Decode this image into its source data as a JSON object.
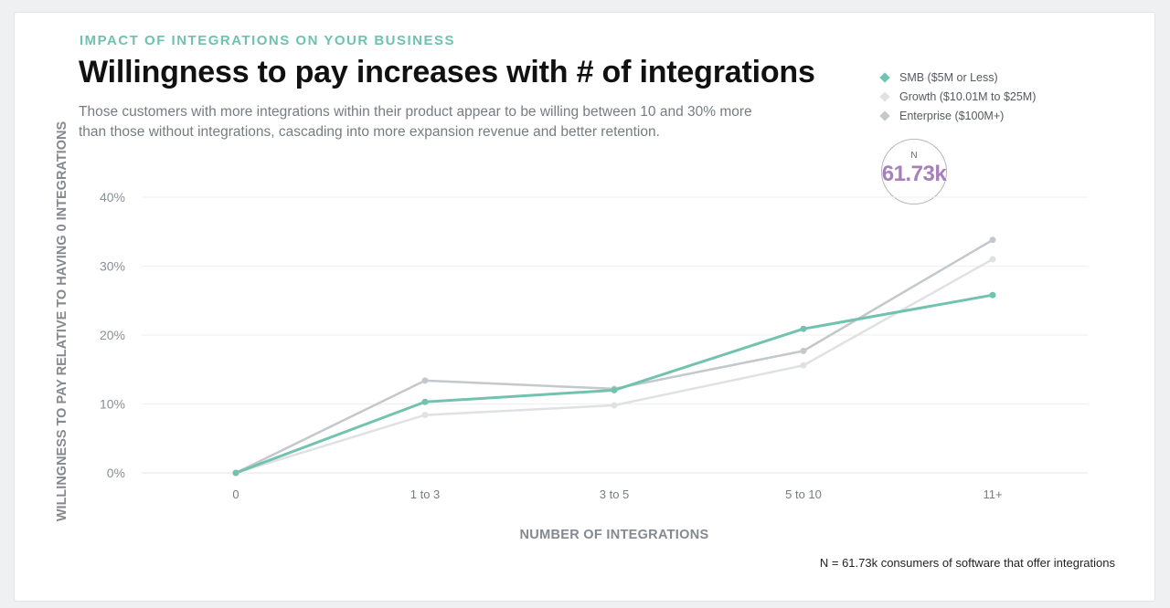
{
  "header": {
    "eyebrow": "IMPACT OF INTEGRATIONS ON YOUR BUSINESS",
    "title": "Willingness to pay increases with # of integrations",
    "subtitle": "Those customers with more integrations within their product appear to be willing between 10 and 30% more than those without integrations, cascading into more expansion revenue and better retention."
  },
  "badge": {
    "label": "N",
    "value": "61.73k"
  },
  "footnote": "N = 61.73k consumers of software that offer integrations",
  "chart_data": {
    "type": "line",
    "categories": [
      "0",
      "1 to 3",
      "3 to 5",
      "5 to 10",
      "11+"
    ],
    "xlabel": "NUMBER OF INTEGRATIONS",
    "ylabel": "WILLINGNESS TO PAY RELATIVE TO HAVING 0 INTEGRATIONS",
    "ylim": [
      0,
      40
    ],
    "yticks": [
      0,
      10,
      20,
      30,
      40
    ],
    "ytick_labels": [
      "0%",
      "10%",
      "20%",
      "30%",
      "40%"
    ],
    "grid": true,
    "legend_position": "top-right",
    "series": [
      {
        "name": "Enterprise ($100M+)",
        "color": "#c3c8cc",
        "values": [
          0,
          13.4,
          12.2,
          17.7,
          33.8
        ]
      },
      {
        "name": "Growth ($10.01M to $25M)",
        "color": "#dfe1e4",
        "values": [
          0,
          8.4,
          9.8,
          15.6,
          31.0
        ]
      },
      {
        "name": "SMB ($5M or Less)",
        "color": "#72c2b0",
        "values": [
          0,
          10.3,
          12.0,
          20.9,
          25.8
        ]
      }
    ],
    "legend_order": [
      "SMB ($5M or Less)",
      "Growth ($10.01M to $25M)",
      "Enterprise ($100M+)"
    ]
  }
}
